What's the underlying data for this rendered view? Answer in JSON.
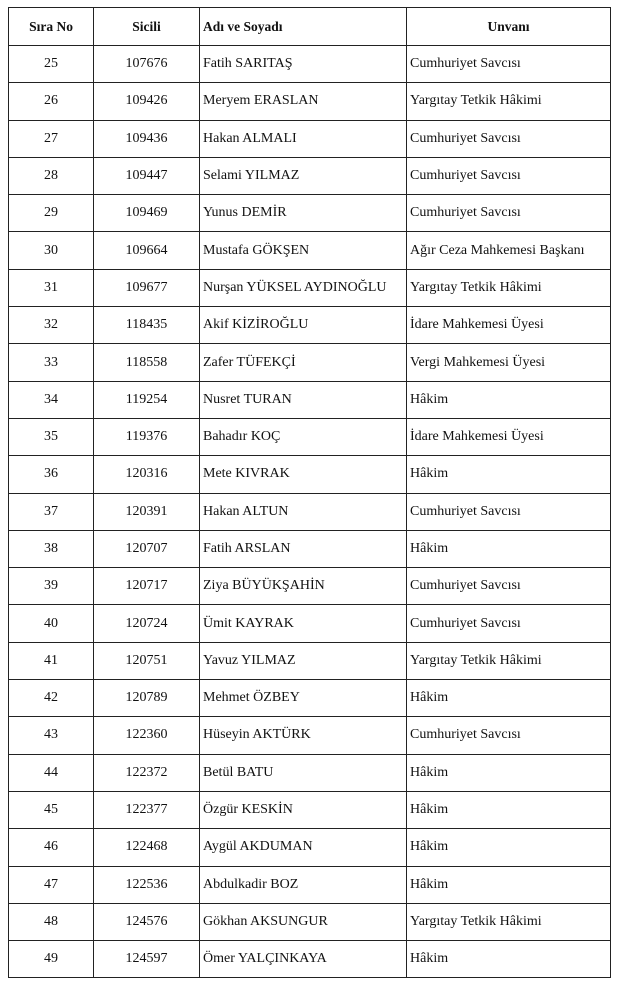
{
  "table": {
    "headers": [
      "Sıra No",
      "Sicili",
      "Adı ve Soyadı",
      "Unvanı"
    ],
    "rows": [
      [
        "25",
        "107676",
        "Fatih SARITAŞ",
        "Cumhuriyet Savcısı"
      ],
      [
        "26",
        "109426",
        "Meryem ERASLAN",
        "Yargıtay Tetkik Hâkimi"
      ],
      [
        "27",
        "109436",
        "Hakan ALMALI",
        "Cumhuriyet Savcısı"
      ],
      [
        "28",
        "109447",
        "Selami YILMAZ",
        "Cumhuriyet Savcısı"
      ],
      [
        "29",
        "109469",
        "Yunus DEMİR",
        "Cumhuriyet Savcısı"
      ],
      [
        "30",
        "109664",
        "Mustafa GÖKŞEN",
        "Ağır Ceza Mahkemesi Başkanı"
      ],
      [
        "31",
        "109677",
        "Nurşan YÜKSEL AYDINOĞLU",
        "Yargıtay Tetkik Hâkimi"
      ],
      [
        "32",
        "118435",
        "Akif KİZİROĞLU",
        "İdare Mahkemesi Üyesi"
      ],
      [
        "33",
        "118558",
        "Zafer TÜFEKÇİ",
        "Vergi Mahkemesi Üyesi"
      ],
      [
        "34",
        "119254",
        "Nusret TURAN",
        "Hâkim"
      ],
      [
        "35",
        "119376",
        "Bahadır KOÇ",
        "İdare Mahkemesi Üyesi"
      ],
      [
        "36",
        "120316",
        "Mete KIVRAK",
        "Hâkim"
      ],
      [
        "37",
        "120391",
        "Hakan ALTUN",
        "Cumhuriyet Savcısı"
      ],
      [
        "38",
        "120707",
        "Fatih ARSLAN",
        "Hâkim"
      ],
      [
        "39",
        "120717",
        "Ziya BÜYÜKŞAHİN",
        "Cumhuriyet Savcısı"
      ],
      [
        "40",
        "120724",
        "Ümit KAYRAK",
        "Cumhuriyet Savcısı"
      ],
      [
        "41",
        "120751",
        "Yavuz YILMAZ",
        "Yargıtay Tetkik Hâkimi"
      ],
      [
        "42",
        "120789",
        "Mehmet ÖZBEY",
        "Hâkim"
      ],
      [
        "43",
        "122360",
        "Hüseyin AKTÜRK",
        "Cumhuriyet Savcısı"
      ],
      [
        "44",
        "122372",
        "Betül BATU",
        "Hâkim"
      ],
      [
        "45",
        "122377",
        "Özgür KESKİN",
        "Hâkim"
      ],
      [
        "46",
        "122468",
        "Aygül AKDUMAN",
        "Hâkim"
      ],
      [
        "47",
        "122536",
        "Abdulkadir BOZ",
        "Hâkim"
      ],
      [
        "48",
        "124576",
        "Gökhan AKSUNGUR",
        "Yargıtay Tetkik Hâkimi"
      ],
      [
        "49",
        "124597",
        "Ömer YALÇINKAYA",
        "Hâkim"
      ]
    ]
  }
}
